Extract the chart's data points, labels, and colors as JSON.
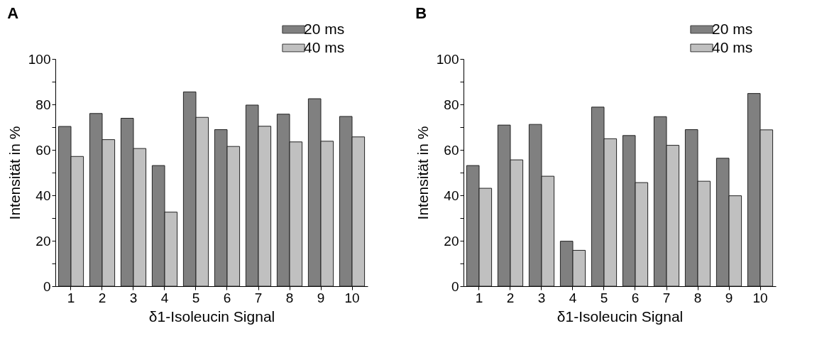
{
  "chart_data": [
    {
      "type": "bar",
      "title": "A",
      "xlabel": "δ1-Isoleucin Signal",
      "ylabel": "Intensität in %",
      "categories": [
        "1",
        "2",
        "3",
        "4",
        "5",
        "6",
        "7",
        "8",
        "9",
        "10"
      ],
      "series": [
        {
          "name": "20 ms",
          "color": "#808080",
          "values": [
            70.3,
            76.0,
            73.9,
            53.1,
            85.5,
            68.9,
            79.7,
            75.7,
            82.5,
            74.7
          ]
        },
        {
          "name": "40 ms",
          "color": "#c0c0c0",
          "values": [
            57.1,
            64.5,
            60.6,
            32.6,
            74.3,
            61.5,
            70.4,
            63.5,
            63.8,
            65.7
          ]
        }
      ],
      "ylim": [
        0,
        100
      ],
      "yticks": [
        0,
        {
          "value": 10,
          "label": null
        },
        20,
        {
          "value": 30,
          "label": null
        },
        40,
        {
          "value": 50,
          "label": null
        },
        60,
        {
          "value": 70,
          "label": null
        },
        80,
        {
          "value": 90,
          "label": null
        },
        100
      ],
      "grid": false,
      "legend": "top right"
    },
    {
      "type": "bar",
      "title": "B",
      "xlabel": "δ1-Isoleucin Signal",
      "ylabel": "Intensität in %",
      "categories": [
        "1",
        "2",
        "3",
        "4",
        "5",
        "6",
        "7",
        "8",
        "9",
        "10"
      ],
      "series": [
        {
          "name": "20 ms",
          "color": "#808080",
          "values": [
            53.1,
            70.9,
            71.2,
            19.8,
            78.8,
            66.3,
            74.6,
            68.9,
            56.3,
            84.8
          ]
        },
        {
          "name": "40 ms",
          "color": "#c0c0c0",
          "values": [
            43.1,
            55.6,
            48.4,
            15.8,
            64.9,
            45.6,
            62.0,
            46.2,
            39.8,
            68.8
          ]
        }
      ],
      "ylim": [
        0,
        100
      ],
      "yticks": [
        0,
        {
          "value": 10,
          "label": null
        },
        20,
        {
          "value": 30,
          "label": null
        },
        40,
        {
          "value": 50,
          "label": null
        },
        60,
        {
          "value": 70,
          "label": null
        },
        80,
        {
          "value": 90,
          "label": null
        },
        100
      ],
      "grid": false,
      "legend": "top right"
    }
  ]
}
